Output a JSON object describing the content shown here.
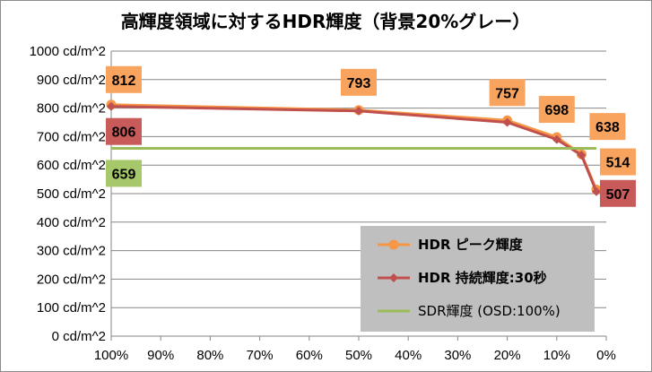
{
  "chart_data": {
    "type": "line",
    "title": "高輝度領域に対するHDR輝度（背景20%グレー）",
    "xlabel": "",
    "ylabel": "",
    "x": [
      "100%",
      "50%",
      "20%",
      "10%",
      "5%",
      "2%"
    ],
    "x_values": [
      100,
      50,
      20,
      10,
      5,
      2
    ],
    "xlim": [
      100,
      0
    ],
    "ylim": [
      0,
      1000
    ],
    "x_ticks": [
      "100%",
      "90%",
      "80%",
      "70%",
      "60%",
      "50%",
      "40%",
      "30%",
      "20%",
      "10%",
      "0%"
    ],
    "y_ticks": [
      "0 cd/m^2",
      "100 cd/m^2",
      "200 cd/m^2",
      "300 cd/m^2",
      "400 cd/m^2",
      "500 cd/m^2",
      "600 cd/m^2",
      "700 cd/m^2",
      "800 cd/m^2",
      "900 cd/m^2",
      "1000 cd/m^2"
    ],
    "grid": true,
    "legend_position": "bottom-right",
    "series": [
      {
        "name": "HDR ピーク輝度",
        "values": [
          812,
          793,
          757,
          698,
          638,
          514
        ],
        "color": "#f79646",
        "marker": "circle",
        "labels": [
          "812",
          "793",
          "757",
          "698",
          "638",
          "514"
        ]
      },
      {
        "name": "HDR 持続輝度:30秒",
        "values": [
          806,
          790,
          750,
          690,
          635,
          507
        ],
        "color": "#c0504d",
        "marker": "diamond",
        "labels": [
          "806",
          "",
          "",
          "",
          "",
          "507"
        ]
      },
      {
        "name": "SDR輝度 (OSD:100%)",
        "values": [
          659,
          659
        ],
        "x_values": [
          100,
          2
        ],
        "color": "#9bbb59",
        "marker": "none",
        "labels": [
          "659"
        ]
      }
    ]
  }
}
